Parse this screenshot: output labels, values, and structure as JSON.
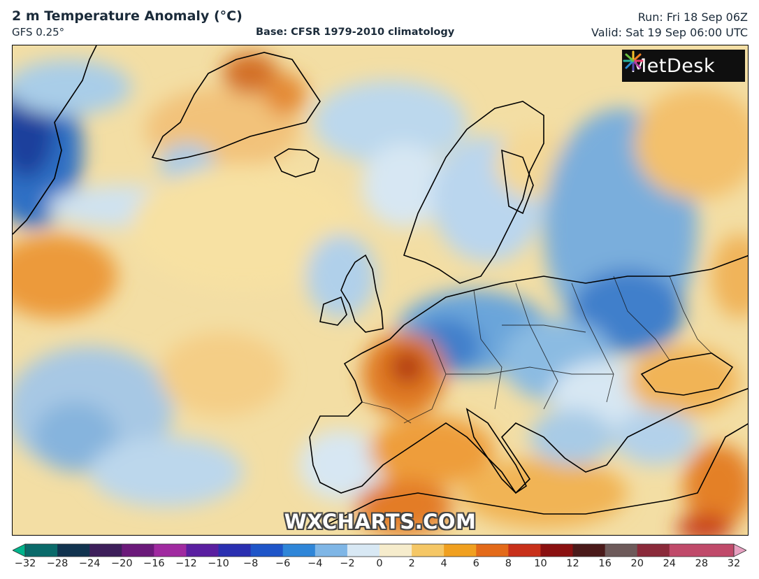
{
  "header": {
    "title": "2 m Temperature Anomaly (°C)",
    "model": "GFS 0.25°",
    "base": "Base: CFSR 1979-2010 climatology",
    "run": "Run: Fri 18 Sep 06Z",
    "valid": "Valid: Sat 19 Sep 06:00 UTC"
  },
  "logo": {
    "text": "MetDesk"
  },
  "watermark": {
    "text": "WXCHARTS.COM"
  },
  "colorbar": {
    "ticks": [
      "−32",
      "−28",
      "−24",
      "−20",
      "−16",
      "−12",
      "−10",
      "−8",
      "−6",
      "−4",
      "−2",
      "0",
      "2",
      "4",
      "6",
      "8",
      "10",
      "12",
      "16",
      "20",
      "24",
      "28",
      "32"
    ],
    "colors": [
      "#00b48c",
      "#0a6a6a",
      "#11334f",
      "#3d1f5a",
      "#6b1a7a",
      "#a02aa0",
      "#5a1fa0",
      "#2a2fb0",
      "#1f55c8",
      "#2f86d8",
      "#7fb6e6",
      "#d8e8f4",
      "#f6eccc",
      "#f5c766",
      "#f0a020",
      "#e36a1a",
      "#c8301a",
      "#8a1010",
      "#4a1a1a",
      "#6d5a5a",
      "#8a2a3a",
      "#c04a6a",
      "#e7a0c0"
    ]
  }
}
